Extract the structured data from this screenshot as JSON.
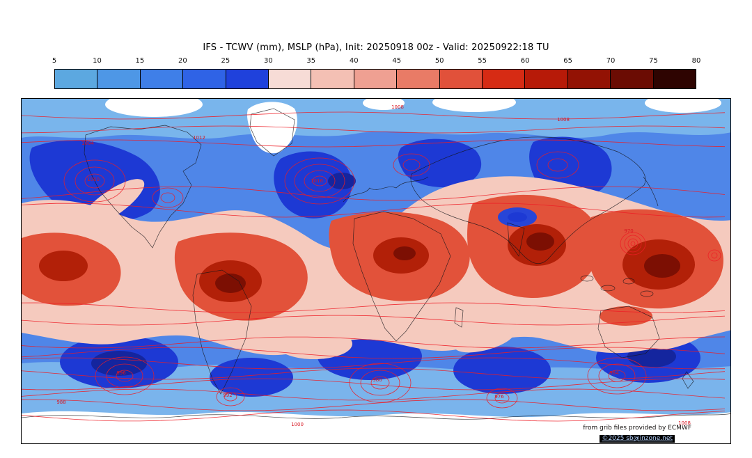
{
  "title": "IFS - TCWV (mm), MSLP (hPa), Init: 20250918 00z - Valid: 20250922:18 TU",
  "colorbar": {
    "unit": "mm",
    "ticks": [
      "5",
      "10",
      "15",
      "20",
      "25",
      "30",
      "35",
      "40",
      "45",
      "50",
      "55",
      "60",
      "65",
      "70",
      "75",
      "80"
    ],
    "colors": [
      "#5ca8e0",
      "#4e97e6",
      "#3f7fe8",
      "#2f63e6",
      "#1f41dc",
      "#f7dcd6",
      "#f4c0b4",
      "#efa092",
      "#e97b66",
      "#e1513a",
      "#d62b14",
      "#b71a08",
      "#931204",
      "#6b0c03",
      "#2e0401"
    ]
  },
  "map": {
    "contour_color": "#ee1c24",
    "coastline_color": "#15151a",
    "isobar_labels": [
      "1008",
      "1004",
      "1000",
      "1016",
      "1012",
      "1008",
      "970",
      "996",
      "980",
      "984",
      "976",
      "992",
      "1008",
      "1000",
      "988"
    ],
    "credit_line1": "from grib files provided by ECMWF",
    "credit_line2": "©2025 sb@inzone.net"
  },
  "chart_data": {
    "type": "heatmap",
    "title": "IFS - TCWV (mm), MSLP (hPa), Init: 20250918 00z - Valid: 20250922:18 TU",
    "shaded_field": "TCWV (mm)",
    "contour_field": "MSLP (hPa)",
    "colorbar_ticks": [
      5,
      10,
      15,
      20,
      25,
      30,
      35,
      40,
      45,
      50,
      55,
      60,
      65,
      70,
      75,
      80
    ],
    "colorbar_range": [
      5,
      80
    ],
    "legend_position": "top",
    "projection": "global equirectangular"
  }
}
